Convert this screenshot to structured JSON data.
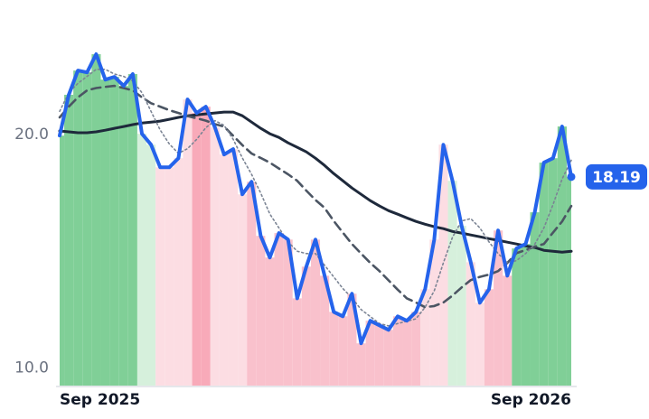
{
  "chart_data": {
    "type": "line",
    "categories": [
      "Sep 2025",
      null,
      null,
      null,
      null,
      null,
      null,
      null,
      null,
      null,
      null,
      null,
      null,
      null,
      null,
      null,
      null,
      null,
      null,
      null,
      null,
      null,
      null,
      null,
      null,
      null,
      null,
      null,
      null,
      null,
      null,
      null,
      null,
      null,
      null,
      null,
      null,
      null,
      null,
      null,
      null,
      null,
      null,
      null,
      null,
      null,
      null,
      null,
      null,
      null,
      null,
      null,
      null,
      null,
      null,
      null,
      "Sep 2026"
    ],
    "ylim": [
      9.2,
      25
    ],
    "yticks": [
      {
        "value": 10,
        "label": "10.0"
      },
      {
        "value": 20,
        "label": "20.0"
      }
    ],
    "band_colors": [
      "#80cf97",
      "#80cf97",
      "#80cf97",
      "#80cf97",
      "#80cf97",
      "#80cf97",
      "#80cf97",
      "#80cf97",
      "#80cf97",
      "#d6f0dc",
      "#d6f0dc",
      "#fcdde3",
      "#fcdde3",
      "#fcdde3",
      "#fcdde3",
      "#f8aab9",
      "#f8aab9",
      "#fcdde3",
      "#fcdde3",
      "#fcdde3",
      "#fcdde3",
      "#f9c1cc",
      "#f9c1cc",
      "#f9c1cc",
      "#f9c1cc",
      "#f9c1cc",
      "#f9c1cc",
      "#f9c1cc",
      "#f9c1cc",
      "#f9c1cc",
      "#f9c1cc",
      "#f9c1cc",
      "#f9c1cc",
      "#f9c1cc",
      "#f9c1cc",
      "#f9c1cc",
      "#f9c1cc",
      "#f9c1cc",
      "#f9c1cc",
      "#f9c1cc",
      "#fcdde3",
      "#fcdde3",
      "#fcdde3",
      "#d6f0dc",
      "#d6f0dc",
      "#fcdde3",
      "#fcdde3",
      "#f9c1cc",
      "#f9c1cc",
      "#f9c1cc",
      "#80cf97",
      "#80cf97",
      "#80cf97",
      "#80cf97",
      "#80cf97",
      "#80cf97",
      "#80cf97"
    ],
    "series": [
      {
        "color": "#2563eb",
        "dash": "solid",
        "values": [
          19.96,
          21.71,
          22.75,
          22.67,
          23.45,
          22.36,
          22.48,
          22.09,
          22.6,
          20.04,
          19.57,
          18.6,
          18.6,
          18.99,
          21.51,
          20.93,
          21.2,
          20.31,
          19.15,
          19.38,
          17.44,
          17.98,
          15.66,
          14.73,
          15.78,
          15.5,
          12.98,
          14.34,
          15.5,
          13.95,
          12.4,
          12.21,
          13.18,
          11.05,
          12.02,
          11.82,
          11.63,
          12.21,
          12.02,
          12.4,
          13.37,
          15.5,
          19.57,
          18.02,
          16.09,
          14.53,
          12.79,
          13.37,
          15.89,
          13.95,
          15.12,
          15.31,
          16.67,
          18.8,
          18.99,
          20.35,
          18.19
        ],
        "value_labels": [
          null,
          null,
          null,
          null,
          null,
          null,
          null,
          null,
          null,
          null,
          null,
          null,
          null,
          null,
          null,
          null,
          null,
          null,
          null,
          null,
          null,
          null,
          null,
          null,
          null,
          null,
          null,
          null,
          null,
          null,
          null,
          null,
          null,
          null,
          null,
          null,
          null,
          null,
          null,
          null,
          null,
          null,
          null,
          null,
          null,
          null,
          null,
          null,
          null,
          null,
          null,
          null,
          null,
          null,
          null,
          null,
          "18.19"
        ]
      },
      {
        "color": "#7b8494",
        "dash": "dotted",
        "values": [
          21.0,
          21.8,
          22.2,
          22.5,
          22.8,
          22.8,
          22.6,
          22.5,
          22.3,
          21.8,
          21.0,
          20.2,
          19.6,
          19.2,
          19.4,
          19.8,
          20.3,
          20.6,
          20.4,
          19.8,
          19.0,
          18.3,
          17.5,
          16.6,
          16.0,
          15.4,
          15.0,
          14.9,
          14.9,
          14.4,
          13.9,
          13.4,
          13.0,
          12.5,
          12.2,
          11.9,
          11.8,
          11.9,
          12.0,
          12.1,
          12.6,
          13.3,
          14.5,
          15.6,
          16.3,
          16.4,
          16.0,
          15.4,
          14.9,
          14.5,
          14.6,
          14.9,
          15.3,
          16.0,
          17.0,
          18.1,
          18.9
        ]
      },
      {
        "color": "#4b5563",
        "dash": "dashed",
        "values": [
          20.74,
          21.2,
          21.6,
          21.9,
          22.0,
          22.05,
          22.09,
          22.0,
          21.9,
          21.6,
          21.35,
          21.2,
          21.05,
          20.93,
          20.8,
          20.7,
          20.6,
          20.45,
          20.35,
          19.95,
          19.55,
          19.19,
          19.0,
          18.8,
          18.55,
          18.3,
          18.02,
          17.6,
          17.2,
          16.86,
          16.3,
          15.8,
          15.31,
          14.9,
          14.5,
          14.15,
          13.75,
          13.35,
          12.98,
          12.8,
          12.6,
          12.65,
          12.8,
          13.1,
          13.45,
          13.76,
          13.9,
          14.0,
          14.15,
          14.5,
          14.92,
          15.05,
          15.2,
          15.31,
          15.8,
          16.28,
          16.94
        ]
      },
      {
        "color": "#1e293b",
        "dash": "solid",
        "values": [
          20.16,
          20.12,
          20.08,
          20.08,
          20.12,
          20.19,
          20.27,
          20.35,
          20.43,
          20.5,
          20.54,
          20.58,
          20.66,
          20.74,
          20.81,
          20.85,
          20.89,
          20.93,
          20.97,
          20.97,
          20.81,
          20.54,
          20.27,
          20.04,
          19.88,
          19.65,
          19.46,
          19.26,
          18.99,
          18.68,
          18.33,
          18.02,
          17.71,
          17.44,
          17.17,
          16.94,
          16.74,
          16.59,
          16.43,
          16.28,
          16.16,
          16.05,
          15.97,
          15.85,
          15.78,
          15.7,
          15.62,
          15.54,
          15.47,
          15.39,
          15.31,
          15.23,
          15.16,
          15.04,
          15.0,
          14.96,
          15.0
        ]
      }
    ]
  }
}
